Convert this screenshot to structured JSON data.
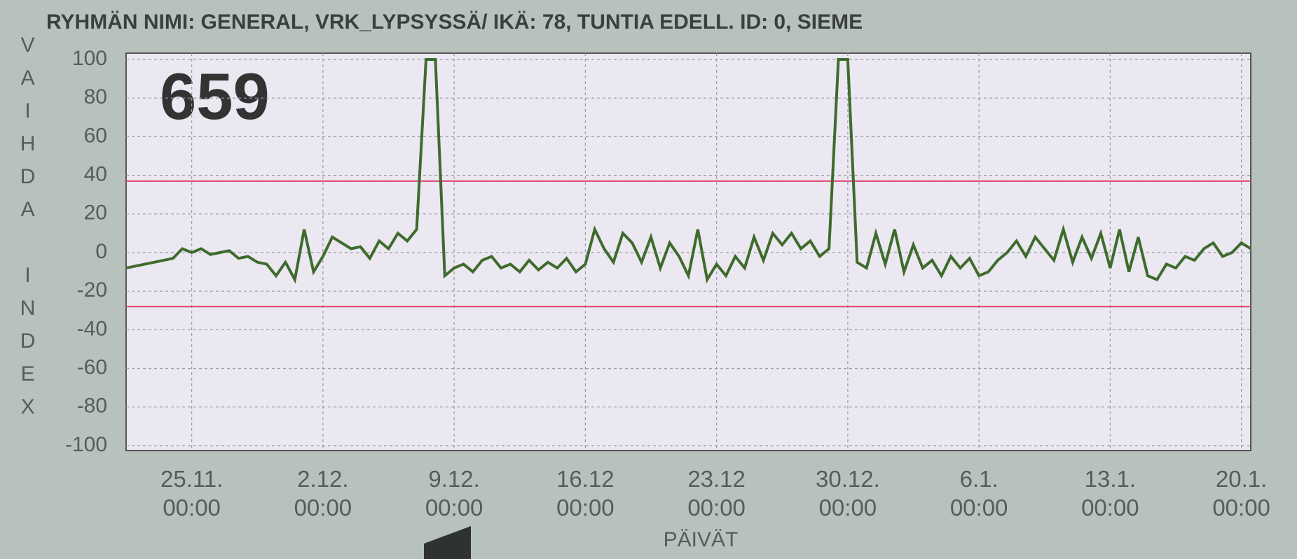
{
  "chart_data": {
    "type": "line",
    "title": "RYHMÄN NIMI: GENERAL, VRK_LYPSYSSÄ/ IKÄ: 78, TUNTIA EDELL. ID: 0, SIEME",
    "annotation": "659",
    "y_label": "VAIHDA INDEX",
    "x_label": "PÄIVÄT",
    "x": [
      -3.5,
      -3,
      -2.5,
      -2,
      -1.5,
      -1,
      -0.5,
      0,
      0.5,
      1,
      1.5,
      2,
      2.5,
      3,
      3.5,
      4,
      4.5,
      5,
      5.5,
      6,
      6.5,
      7,
      7.5,
      8,
      8.5,
      9,
      9.5,
      10,
      10.5,
      11,
      11.5,
      12,
      12.5,
      13,
      13.5,
      14,
      14.5,
      15,
      15.5,
      16,
      16.5,
      17,
      17.5,
      18,
      18.5,
      19,
      19.5,
      20,
      20.5,
      21,
      21.5,
      22,
      22.5,
      23,
      23.5,
      24,
      24.5,
      25,
      25.5,
      26,
      26.5,
      27,
      27.5,
      28,
      28.5,
      29,
      29.5,
      30,
      30.5,
      31,
      31.5,
      32,
      32.5,
      33,
      33.5,
      34,
      34.5,
      35,
      35.5,
      36,
      36.5,
      37,
      37.5,
      38,
      38.5,
      39,
      39.5,
      40,
      40.5,
      41,
      41.5,
      42,
      42.5,
      43,
      43.5,
      44,
      44.5,
      45,
      45.5,
      46,
      46.5,
      47,
      47.5,
      48,
      48.5,
      49,
      49.5,
      50,
      50.5,
      51,
      51.5,
      52,
      52.5,
      53,
      53.5,
      54,
      54.5,
      55,
      55.5,
      56,
      56.5
    ],
    "series": [
      {
        "color": "#3f6b2c",
        "values": [
          -8,
          -7,
          -6,
          -5,
          -4,
          -3,
          2,
          0,
          2,
          -1,
          0,
          1,
          -3,
          -2,
          -5,
          -6,
          -12,
          -5,
          -14,
          12,
          -10,
          -2,
          8,
          5,
          2,
          3,
          -3,
          6,
          2,
          10,
          6,
          12,
          100,
          100,
          -12,
          -8,
          -6,
          -10,
          -4,
          -2,
          -8,
          -6,
          -10,
          -4,
          -9,
          -5,
          -8,
          -3,
          -10,
          -6,
          12,
          2,
          -5,
          10,
          5,
          -5,
          8,
          -8,
          5,
          -2,
          -12,
          12,
          -14,
          -6,
          -12,
          -2,
          -8,
          8,
          -4,
          10,
          4,
          10,
          2,
          6,
          -2,
          2,
          100,
          100,
          -5,
          -8,
          10,
          -6,
          12,
          -10,
          4,
          -8,
          -4,
          -12,
          -2,
          -8,
          -3,
          -12,
          -10,
          -4,
          0,
          6,
          -2,
          8,
          2,
          -4,
          12,
          -5,
          8,
          -3,
          10,
          -8,
          12,
          -10,
          8,
          -12,
          -14,
          -6,
          -8,
          -2,
          -4,
          2,
          5,
          -2,
          0,
          5,
          2
        ]
      }
    ],
    "xlim": [
      -3.5,
      56.5
    ],
    "xticks": [
      {
        "value": 0,
        "label": "25.11.\n00:00"
      },
      {
        "value": 7,
        "label": "2.12.\n00:00"
      },
      {
        "value": 14,
        "label": "9.12.\n00:00"
      },
      {
        "value": 21,
        "label": "16.12\n00:00"
      },
      {
        "value": 28,
        "label": "23.12\n00:00"
      },
      {
        "value": 35,
        "label": "30.12.\n00:00"
      },
      {
        "value": 42,
        "label": "6.1.\n00:00"
      },
      {
        "value": 49,
        "label": "13.1.\n00:00"
      },
      {
        "value": 56,
        "label": "20.1.\n00:00"
      }
    ],
    "ylim": [
      -100,
      100
    ],
    "yticks": [
      100,
      80,
      60,
      40,
      20,
      0,
      -20,
      -40,
      -60,
      -80,
      -100
    ],
    "grid": true,
    "reference_lines": [
      37,
      -28
    ],
    "reference_color": "#e0406a"
  }
}
